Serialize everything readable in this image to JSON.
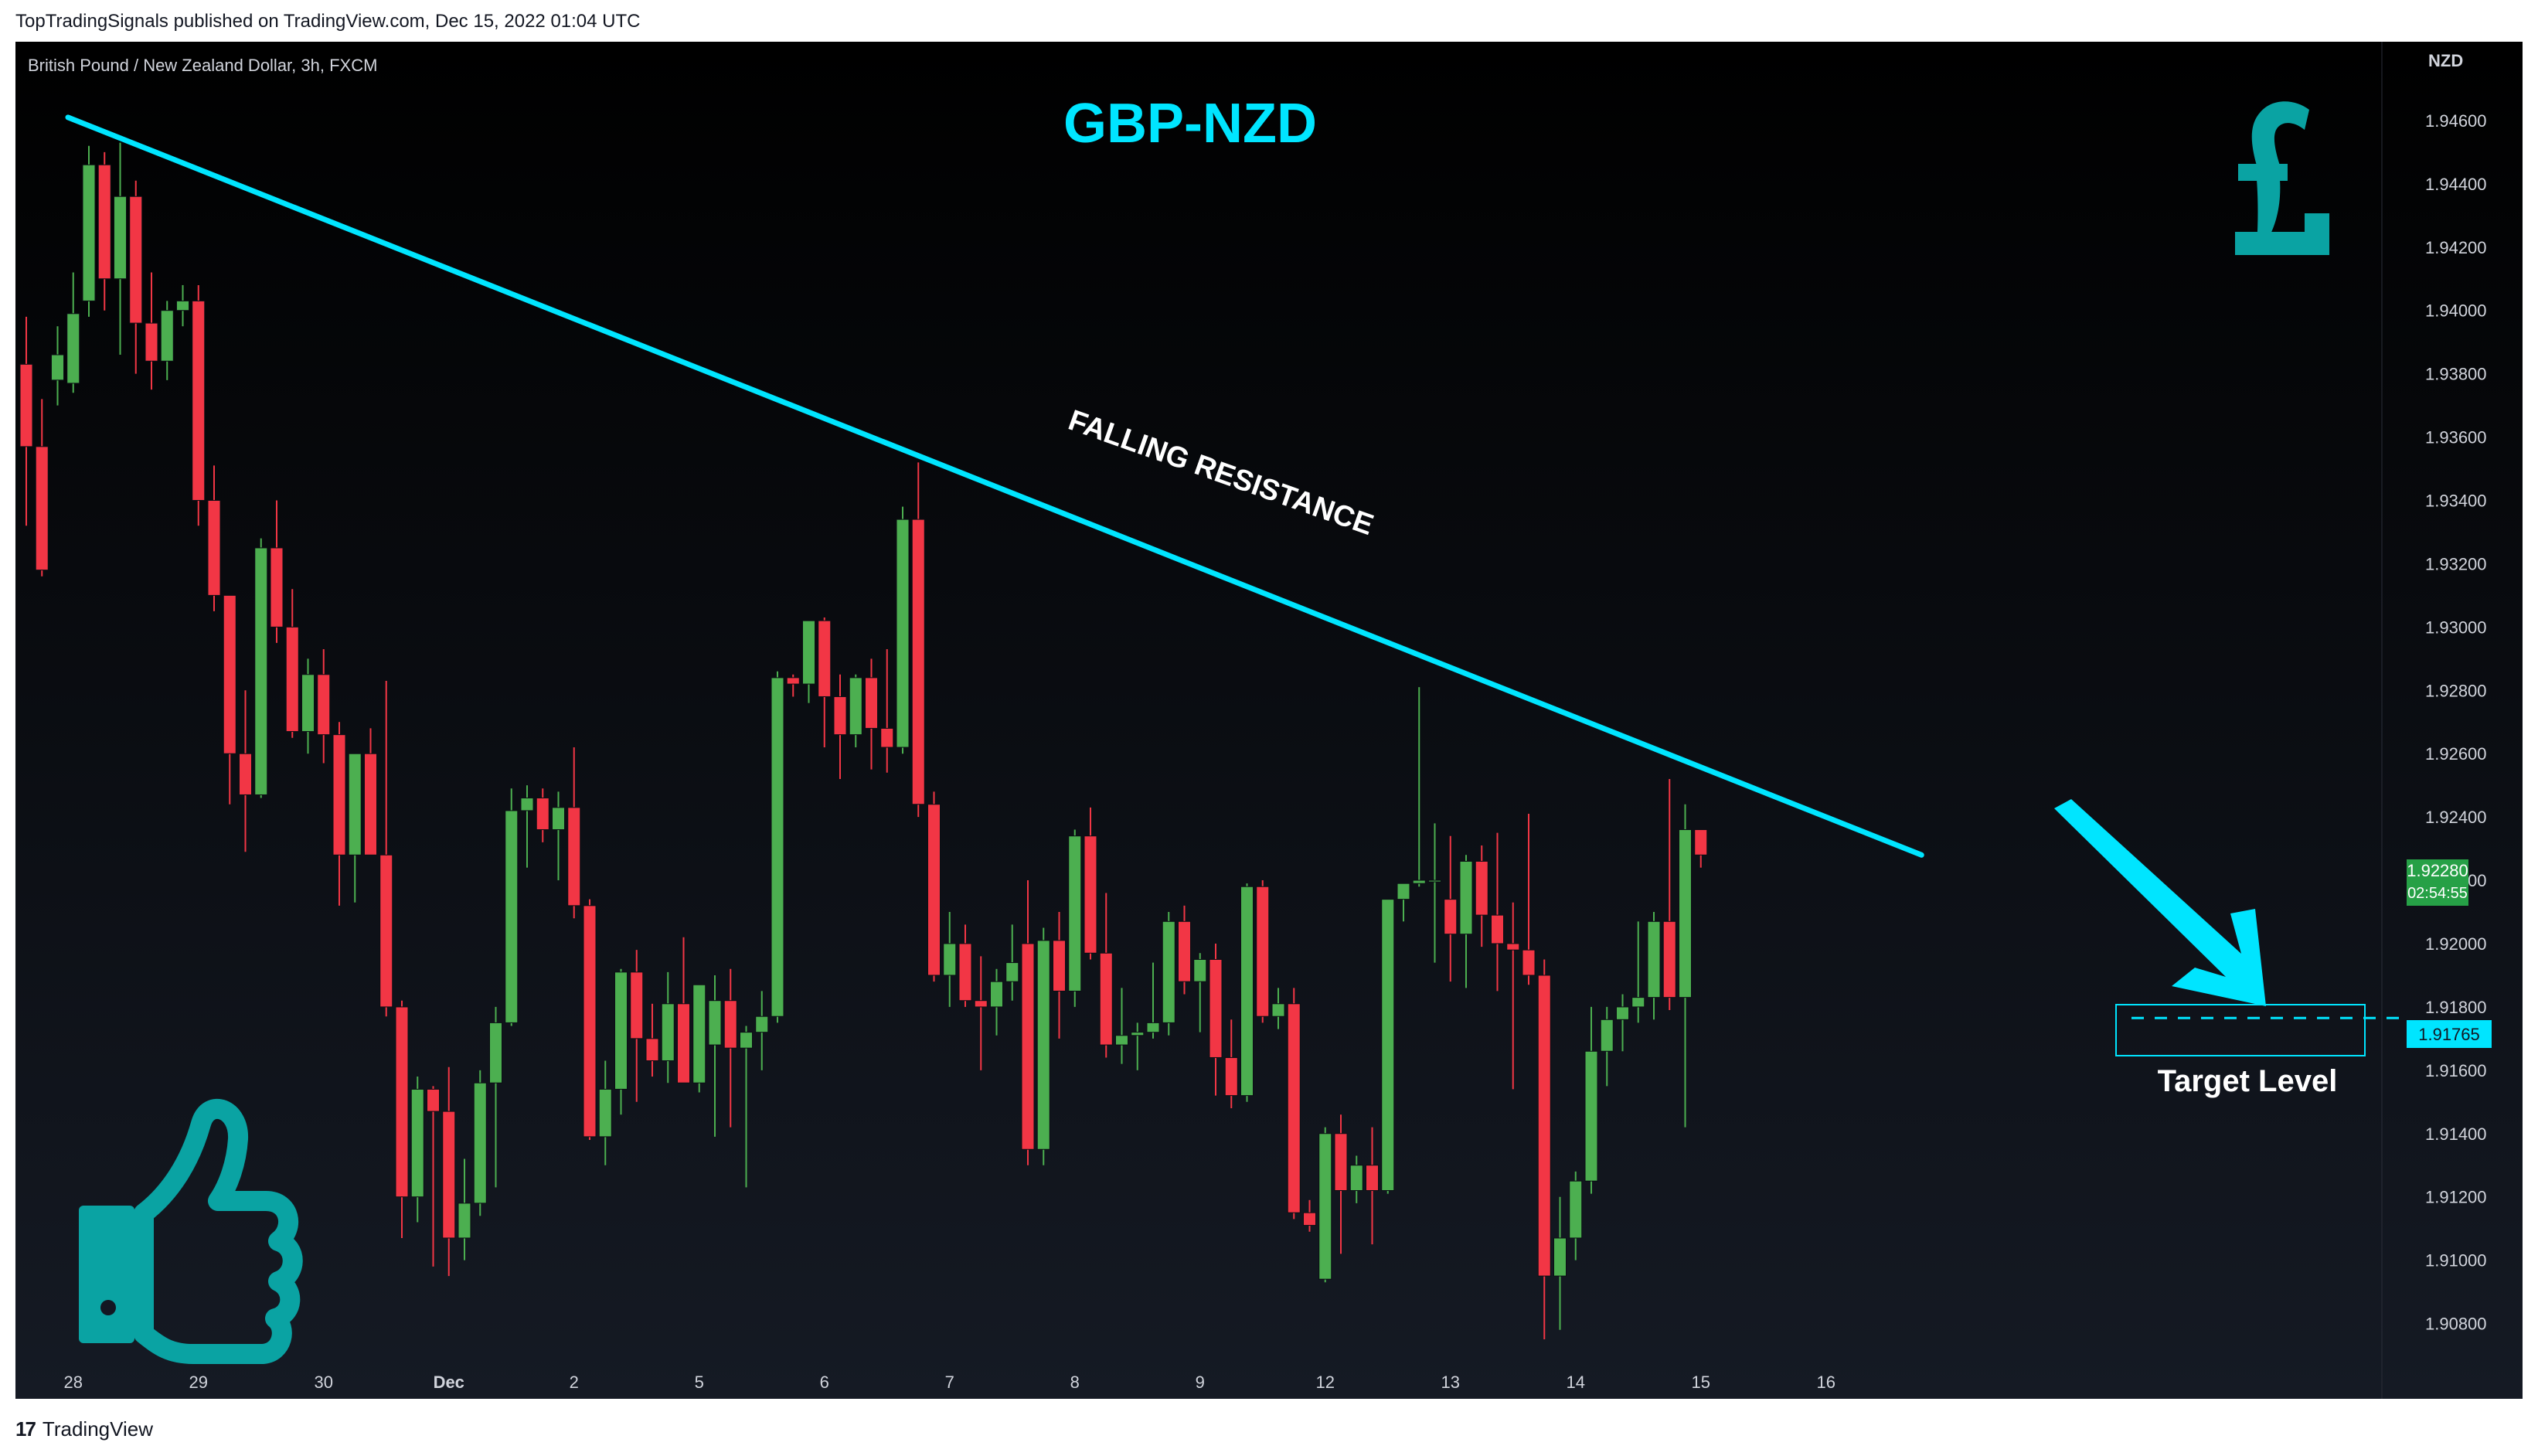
{
  "header": {
    "published": "TopTradingSignals published on TradingView.com, Dec 15, 2022 01:04 UTC"
  },
  "footer": {
    "logo_mark": "17",
    "logo_text": "TradingView"
  },
  "symbol_label": "British Pound / New Zealand Dollar, 3h, FXCM",
  "currency": "NZD",
  "title": "GBP-NZD",
  "annotation": "FALLING RESISTANCE",
  "target_label": "Target Level",
  "current_price": "1.92280",
  "countdown": "02:54:55",
  "target_price": "1.91765",
  "colors": {
    "background": "#131722",
    "up": "#4caf50",
    "down": "#f23645",
    "accent": "#00e5ff",
    "icon": "#0aa3a3",
    "price_tag": "#26a046"
  },
  "icons": [
    "pound-sign-icon",
    "thumbs-up-icon",
    "arrow-down-right-icon"
  ],
  "chart_data": {
    "type": "candlestick",
    "ylim": [
      1.9065,
      1.948
    ],
    "y_ticks": [
      "1.94600",
      "1.94400",
      "1.94200",
      "1.94000",
      "1.93800",
      "1.93600",
      "1.93400",
      "1.93200",
      "1.93000",
      "1.92800",
      "1.92600",
      "1.92400",
      "1.92200",
      "1.92000",
      "1.91800",
      "1.91600",
      "1.91400",
      "1.91200",
      "1.91000",
      "1.90800"
    ],
    "x_ticks": [
      {
        "label": "28",
        "i": 3
      },
      {
        "label": "29",
        "i": 11
      },
      {
        "label": "30",
        "i": 19
      },
      {
        "label": "Dec",
        "i": 27
      },
      {
        "label": "2",
        "i": 35
      },
      {
        "label": "5",
        "i": 43
      },
      {
        "label": "6",
        "i": 51
      },
      {
        "label": "7",
        "i": 59
      },
      {
        "label": "8",
        "i": 67
      },
      {
        "label": "9",
        "i": 75
      },
      {
        "label": "12",
        "i": 83
      },
      {
        "label": "13",
        "i": 91
      },
      {
        "label": "14",
        "i": 99
      },
      {
        "label": "15",
        "i": 107
      },
      {
        "label": "16",
        "i": 115
      }
    ],
    "candles": [
      [
        1.9383,
        1.9398,
        1.9332,
        1.9357
      ],
      [
        1.9357,
        1.9372,
        1.9316,
        1.9318
      ],
      [
        1.9378,
        1.9395,
        1.937,
        1.9386
      ],
      [
        1.9377,
        1.9412,
        1.9374,
        1.9399
      ],
      [
        1.9403,
        1.9452,
        1.9398,
        1.9446
      ],
      [
        1.9446,
        1.945,
        1.94,
        1.941
      ],
      [
        1.941,
        1.9453,
        1.9386,
        1.9436
      ],
      [
        1.9436,
        1.9441,
        1.938,
        1.9396
      ],
      [
        1.9396,
        1.9412,
        1.9375,
        1.9384
      ],
      [
        1.9384,
        1.9403,
        1.9378,
        1.94
      ],
      [
        1.94,
        1.9408,
        1.9395,
        1.9403
      ],
      [
        1.9403,
        1.9408,
        1.9332,
        1.934
      ],
      [
        1.934,
        1.9351,
        1.9305,
        1.931
      ],
      [
        1.931,
        1.931,
        1.9244,
        1.926
      ],
      [
        1.926,
        1.928,
        1.9229,
        1.9247
      ],
      [
        1.9247,
        1.9328,
        1.9246,
        1.9325
      ],
      [
        1.9325,
        1.934,
        1.9295,
        1.93
      ],
      [
        1.93,
        1.9312,
        1.9265,
        1.9267
      ],
      [
        1.9267,
        1.929,
        1.926,
        1.9285
      ],
      [
        1.9285,
        1.9293,
        1.9257,
        1.9266
      ],
      [
        1.9266,
        1.927,
        1.9212,
        1.9228
      ],
      [
        1.9228,
        1.926,
        1.9213,
        1.926
      ],
      [
        1.926,
        1.9268,
        1.9228,
        1.9228
      ],
      [
        1.9228,
        1.9283,
        1.9177,
        1.918
      ],
      [
        1.918,
        1.9182,
        1.9107,
        1.912
      ],
      [
        1.912,
        1.9158,
        1.9112,
        1.9154
      ],
      [
        1.9154,
        1.9155,
        1.9098,
        1.9147
      ],
      [
        1.9147,
        1.9161,
        1.9095,
        1.9107
      ],
      [
        1.9107,
        1.9132,
        1.91,
        1.9118
      ],
      [
        1.9118,
        1.916,
        1.9114,
        1.9156
      ],
      [
        1.9156,
        1.918,
        1.9123,
        1.9175
      ],
      [
        1.9175,
        1.9249,
        1.9174,
        1.9242
      ],
      [
        1.9242,
        1.925,
        1.9224,
        1.9246
      ],
      [
        1.9246,
        1.9249,
        1.9232,
        1.9236
      ],
      [
        1.9236,
        1.9248,
        1.922,
        1.9243
      ],
      [
        1.9243,
        1.9262,
        1.9208,
        1.9212
      ],
      [
        1.9212,
        1.9214,
        1.9138,
        1.9139
      ],
      [
        1.9139,
        1.9163,
        1.913,
        1.9154
      ],
      [
        1.9154,
        1.9192,
        1.9146,
        1.9191
      ],
      [
        1.9191,
        1.9198,
        1.915,
        1.917
      ],
      [
        1.917,
        1.9181,
        1.9158,
        1.9163
      ],
      [
        1.9163,
        1.9191,
        1.9156,
        1.9181
      ],
      [
        1.9181,
        1.9202,
        1.9156,
        1.9156
      ],
      [
        1.9156,
        1.9187,
        1.9153,
        1.9187
      ],
      [
        1.9168,
        1.919,
        1.9139,
        1.9182
      ],
      [
        1.9182,
        1.9192,
        1.9142,
        1.9167
      ],
      [
        1.9167,
        1.9174,
        1.9123,
        1.9172
      ],
      [
        1.9172,
        1.9185,
        1.916,
        1.9177
      ],
      [
        1.9177,
        1.9286,
        1.9175,
        1.9284
      ],
      [
        1.9284,
        1.9285,
        1.9278,
        1.9282
      ],
      [
        1.9282,
        1.9302,
        1.9276,
        1.9302
      ],
      [
        1.9302,
        1.9303,
        1.9262,
        1.9278
      ],
      [
        1.9278,
        1.9285,
        1.9252,
        1.9266
      ],
      [
        1.9266,
        1.9285,
        1.9262,
        1.9284
      ],
      [
        1.9284,
        1.929,
        1.9255,
        1.9268
      ],
      [
        1.9268,
        1.9293,
        1.9254,
        1.9262
      ],
      [
        1.9262,
        1.9338,
        1.926,
        1.9334
      ],
      [
        1.9334,
        1.9352,
        1.924,
        1.9244
      ],
      [
        1.9244,
        1.9248,
        1.9188,
        1.919
      ],
      [
        1.919,
        1.921,
        1.918,
        1.92
      ],
      [
        1.92,
        1.9206,
        1.918,
        1.9182
      ],
      [
        1.9182,
        1.9196,
        1.916,
        1.918
      ],
      [
        1.918,
        1.9192,
        1.9171,
        1.9188
      ],
      [
        1.9188,
        1.9206,
        1.9182,
        1.9194
      ],
      [
        1.92,
        1.922,
        1.913,
        1.9135
      ],
      [
        1.9135,
        1.9205,
        1.913,
        1.9201
      ],
      [
        1.9201,
        1.921,
        1.917,
        1.9185
      ],
      [
        1.9185,
        1.9236,
        1.918,
        1.9234
      ],
      [
        1.9234,
        1.9243,
        1.9195,
        1.9197
      ],
      [
        1.9197,
        1.9216,
        1.9164,
        1.9168
      ],
      [
        1.9168,
        1.9186,
        1.9162,
        1.9171
      ],
      [
        1.9171,
        1.9175,
        1.916,
        1.9172
      ],
      [
        1.9172,
        1.9194,
        1.917,
        1.9175
      ],
      [
        1.9175,
        1.921,
        1.9171,
        1.9207
      ],
      [
        1.9207,
        1.9212,
        1.9184,
        1.9188
      ],
      [
        1.9188,
        1.9197,
        1.9172,
        1.9195
      ],
      [
        1.9195,
        1.92,
        1.9152,
        1.9164
      ],
      [
        1.9164,
        1.9176,
        1.9148,
        1.9152
      ],
      [
        1.9152,
        1.9219,
        1.915,
        1.9218
      ],
      [
        1.9218,
        1.922,
        1.9175,
        1.9177
      ],
      [
        1.9177,
        1.9186,
        1.9173,
        1.9181
      ],
      [
        1.9181,
        1.9186,
        1.9113,
        1.9115
      ],
      [
        1.9115,
        1.9119,
        1.9109,
        1.9111
      ],
      [
        1.9094,
        1.9142,
        1.9093,
        1.914
      ],
      [
        1.914,
        1.9146,
        1.9102,
        1.9122
      ],
      [
        1.9122,
        1.9133,
        1.9118,
        1.913
      ],
      [
        1.913,
        1.9142,
        1.9105,
        1.9122
      ],
      [
        1.9122,
        1.9213,
        1.9121,
        1.9214
      ],
      [
        1.9214,
        1.9219,
        1.9207,
        1.9219
      ],
      [
        1.9219,
        1.9281,
        1.9218,
        1.922
      ],
      [
        1.922,
        1.9238,
        1.9194,
        1.922
      ],
      [
        1.9214,
        1.9234,
        1.9188,
        1.9203
      ],
      [
        1.9203,
        1.9228,
        1.9186,
        1.9226
      ],
      [
        1.9226,
        1.9231,
        1.9199,
        1.9209
      ],
      [
        1.9209,
        1.9235,
        1.9185,
        1.92
      ],
      [
        1.92,
        1.9213,
        1.9154,
        1.9198
      ],
      [
        1.9198,
        1.9241,
        1.9187,
        1.919
      ],
      [
        1.919,
        1.9195,
        1.9075,
        1.9095
      ],
      [
        1.9095,
        1.912,
        1.9078,
        1.9107
      ],
      [
        1.9107,
        1.9128,
        1.91,
        1.9125
      ],
      [
        1.9125,
        1.918,
        1.9121,
        1.9166
      ],
      [
        1.9166,
        1.918,
        1.9155,
        1.9176
      ],
      [
        1.9176,
        1.9184,
        1.9166,
        1.918
      ],
      [
        1.918,
        1.9207,
        1.9175,
        1.9183
      ],
      [
        1.9183,
        1.921,
        1.9176,
        1.9207
      ],
      [
        1.9207,
        1.9252,
        1.9179,
        1.9183
      ],
      [
        1.9183,
        1.9244,
        1.9142,
        1.9236
      ],
      [
        1.9236,
        1.9233,
        1.9224,
        1.9228
      ]
    ],
    "resistance_line": [
      [
        0,
        1.9461
      ],
      [
        121,
        1.9228
      ]
    ],
    "target_level": 1.91765,
    "current_price": 1.9228
  }
}
